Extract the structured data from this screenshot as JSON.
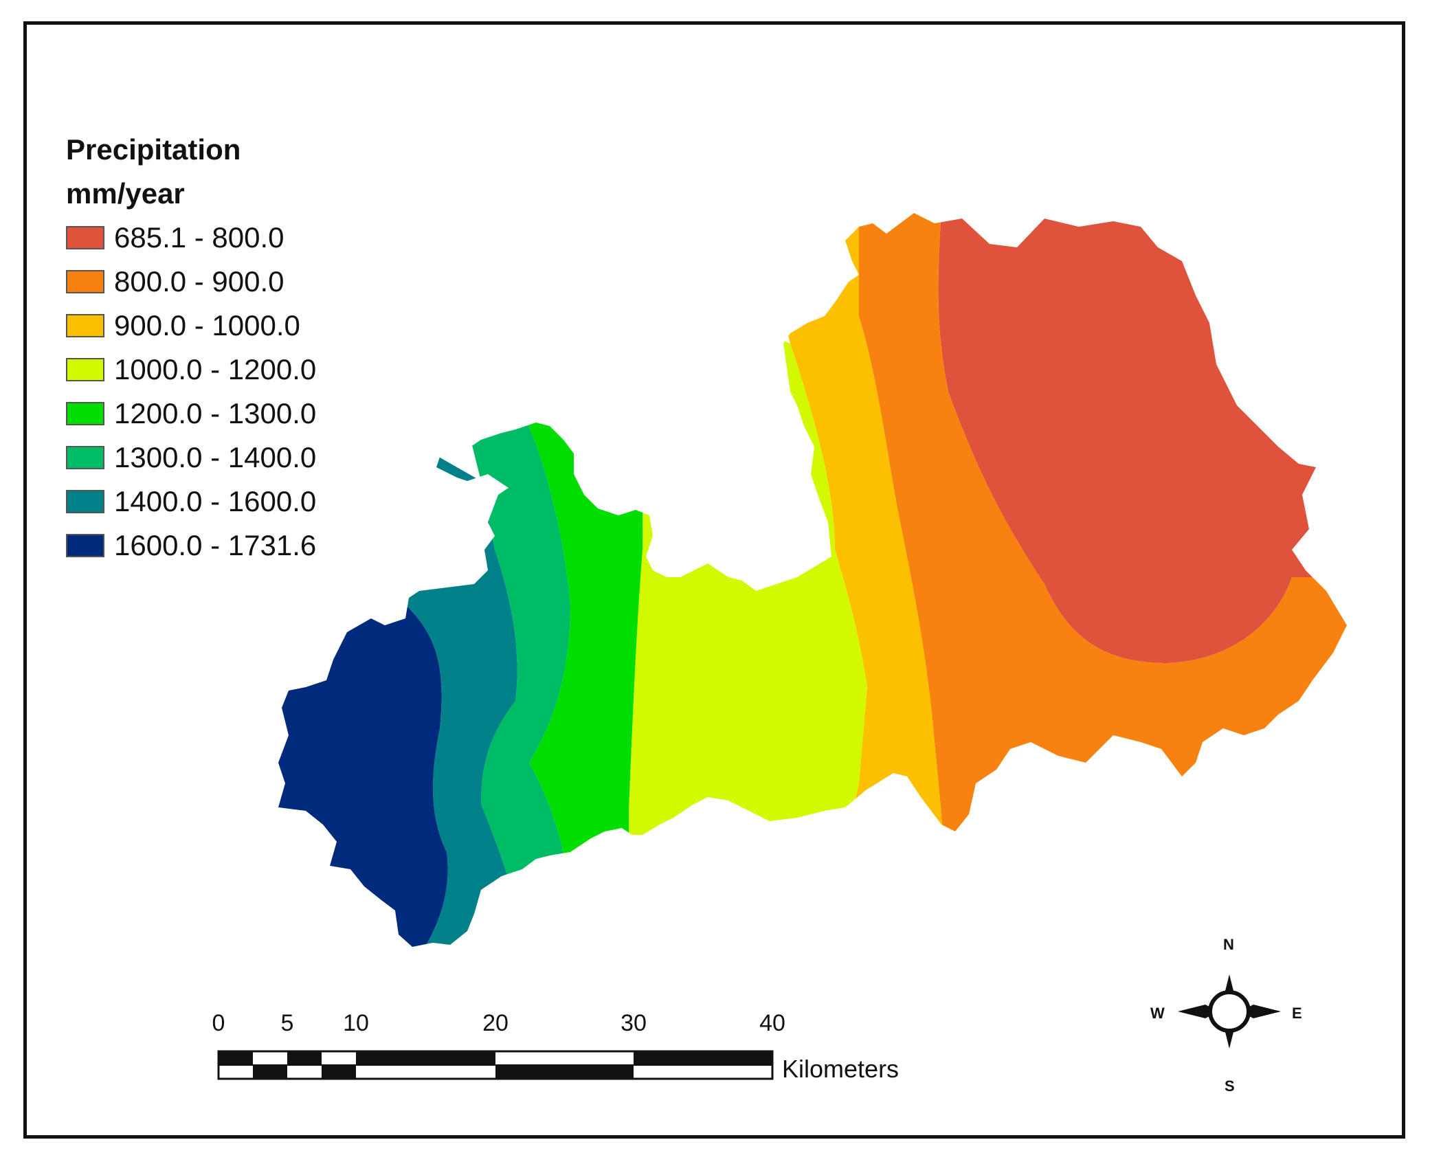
{
  "legend": {
    "title_line1": "Precipitation",
    "title_line2": "mm/year",
    "classes": [
      {
        "label": "685.1 - 800.0",
        "color": "#df523b"
      },
      {
        "label": "800.0 - 900.0",
        "color": "#f7820f"
      },
      {
        "label": "900.0 - 1000.0",
        "color": "#fcc000"
      },
      {
        "label": "1000.0 - 1200.0",
        "color": "#d3f900"
      },
      {
        "label": "1200.0 - 1300.0",
        "color": "#00dd00"
      },
      {
        "label": "1300.0 - 1400.0",
        "color": "#00bb66"
      },
      {
        "label": "1400.0 - 1600.0",
        "color": "#008088"
      },
      {
        "label": "1600.0 - 1731.6",
        "color": "#002a7c"
      }
    ]
  },
  "scale_bar": {
    "ticks": [
      "0",
      "5",
      "10",
      "20",
      "30",
      "40"
    ],
    "units": "Kilometers"
  },
  "compass": {
    "north": "N",
    "south": "S",
    "east": "E",
    "west": "W"
  }
}
